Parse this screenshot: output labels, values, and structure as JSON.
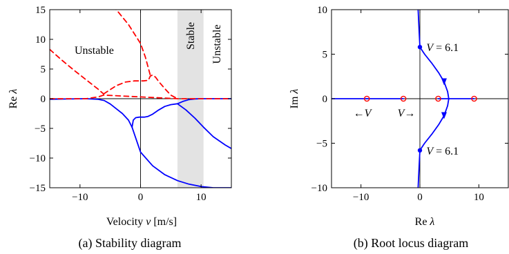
{
  "chart_data": [
    {
      "type": "line",
      "caption": "(a) Stability diagram",
      "xlabel": "Velocity",
      "xlabel_var": "v",
      "xlabel_unit": "[m/s]",
      "ylabel": "Re",
      "ylabel_var": "λ",
      "xlim": [
        -15,
        15
      ],
      "ylim": [
        -15,
        15
      ],
      "xticks": [
        -10,
        0,
        10
      ],
      "yticks": [
        -15,
        -10,
        -5,
        0,
        5,
        10,
        15
      ],
      "stable_region": [
        6.1,
        10.4
      ],
      "region_labels": {
        "left": "Unstable",
        "middle": "Stable",
        "right": "Unstable"
      },
      "series": [
        {
          "style": "solid",
          "color": "#0000ff",
          "x": [
            -15,
            -12,
            -9,
            -7,
            -6,
            -5,
            -4,
            -3,
            -2,
            -1.4
          ],
          "y": [
            -0.1,
            -0.05,
            0,
            -0.1,
            -0.3,
            -0.9,
            -1.7,
            -2.5,
            -3.6,
            -4.8
          ]
        },
        {
          "style": "solid",
          "color": "#0000ff",
          "x": [
            -1.4,
            -1.2,
            -0.8,
            -0.2,
            0.6,
            1.2,
            2,
            3,
            4,
            5,
            6.1,
            7,
            8,
            9,
            10,
            11,
            12,
            14,
            15
          ],
          "y": [
            -4.8,
            -3.6,
            -3.2,
            -3.1,
            -3.1,
            -3.0,
            -2.6,
            -1.9,
            -1.3,
            -1.0,
            -0.85,
            -0.45,
            -0.15,
            -0.04,
            0,
            0,
            0,
            0,
            0
          ]
        },
        {
          "style": "solid",
          "color": "#0000ff",
          "x": [
            -1.4,
            0,
            2,
            4,
            6.1,
            8,
            10,
            12,
            14,
            15
          ],
          "y": [
            -4.8,
            -9,
            -11.3,
            -12.8,
            -13.8,
            -14.4,
            -14.8,
            -15.0,
            -15.0,
            -15.0
          ]
        },
        {
          "style": "solid",
          "color": "#0000ff",
          "x": [
            6.1,
            7.5,
            9,
            10.4,
            12,
            14,
            15
          ],
          "y": [
            -0.85,
            -1.9,
            -3.3,
            -4.8,
            -6.4,
            -7.8,
            -8.4
          ]
        },
        {
          "style": "dashed",
          "color": "#ff0000",
          "x": [
            -15,
            -13,
            -11,
            -9,
            -7,
            -6.1
          ],
          "y": [
            8.3,
            6.5,
            4.8,
            3.2,
            1.6,
            0.8
          ]
        },
        {
          "style": "dashed",
          "color": "#ff0000",
          "x": [
            -6.1,
            -4,
            -2.5,
            -1,
            0.5,
            1.3,
            1.6,
            2.0,
            2.5,
            3,
            4,
            5,
            6.1
          ],
          "y": [
            0.8,
            2.2,
            2.8,
            3.0,
            3.0,
            3.1,
            3.8,
            4.0,
            3.6,
            2.9,
            1.7,
            0.6,
            0
          ]
        },
        {
          "style": "dashed",
          "color": "#ff0000",
          "x": [
            -6,
            -4,
            -2,
            0,
            0.8,
            1.6
          ],
          "y": [
            16,
            15,
            12.5,
            9.3,
            7.0,
            4.0
          ]
        },
        {
          "style": "dashed",
          "color": "#ff0000",
          "x": [
            -15,
            -12,
            -9,
            -7,
            -6.1,
            6.1,
            8,
            10.4,
            12,
            15
          ],
          "y": [
            0,
            0,
            0,
            0.3,
            0.6,
            0,
            0,
            0,
            0,
            0
          ]
        }
      ]
    },
    {
      "type": "line",
      "caption": "(b) Root locus diagram",
      "xlabel": "Re",
      "xlabel_var": "λ",
      "ylabel": "Im",
      "ylabel_var": "λ",
      "xlim": [
        -15,
        15
      ],
      "ylim": [
        -10,
        10
      ],
      "xticks": [
        -10,
        0,
        10
      ],
      "yticks": [
        -10,
        -5,
        0,
        5,
        10
      ],
      "open_circles": [
        [
          -9,
          0
        ],
        [
          -2.8,
          0
        ],
        [
          3.1,
          0
        ],
        [
          9.2,
          0
        ]
      ],
      "dots": [
        [
          0,
          5.8
        ],
        [
          0,
          -5.8
        ]
      ],
      "annotations": [
        {
          "text": "V = 6.1",
          "var": "V",
          "rest": " = 6.1",
          "x": 1.1,
          "y": 5.8
        },
        {
          "text": "V = 6.1",
          "var": "V",
          "rest": " = 6.1",
          "x": 1.1,
          "y": -5.8
        }
      ],
      "arrow_labels": {
        "left": "←V",
        "right": "V→"
      },
      "series": [
        {
          "style": "solid",
          "color": "#0000ff",
          "x": [
            -0.3,
            -0.1,
            0,
            0.8,
            2,
            3.2,
            4.1,
            4.7,
            4.9,
            4.7,
            4.1,
            3.2,
            2,
            0.8,
            0,
            -0.1,
            -0.3
          ],
          "y": [
            10,
            7.2,
            5.8,
            5.0,
            4.0,
            2.9,
            1.9,
            0.8,
            0,
            -0.8,
            -1.9,
            -2.9,
            -4.0,
            -5.0,
            -5.8,
            -7.2,
            -10
          ]
        },
        {
          "style": "solid",
          "color": "#0000ff",
          "x": [
            -15,
            -9
          ],
          "y": [
            0,
            0
          ]
        },
        {
          "style": "solid",
          "color": "#0000ff",
          "x": [
            -9,
            -2.8
          ],
          "y": [
            0,
            0
          ]
        },
        {
          "style": "solid",
          "color": "#0000ff",
          "x": [
            3.1,
            9.2
          ],
          "y": [
            0,
            0
          ]
        }
      ],
      "direction_arrows": [
        [
          4.1,
          1.9,
          "down"
        ],
        [
          4.1,
          -1.9,
          "down"
        ]
      ]
    }
  ]
}
